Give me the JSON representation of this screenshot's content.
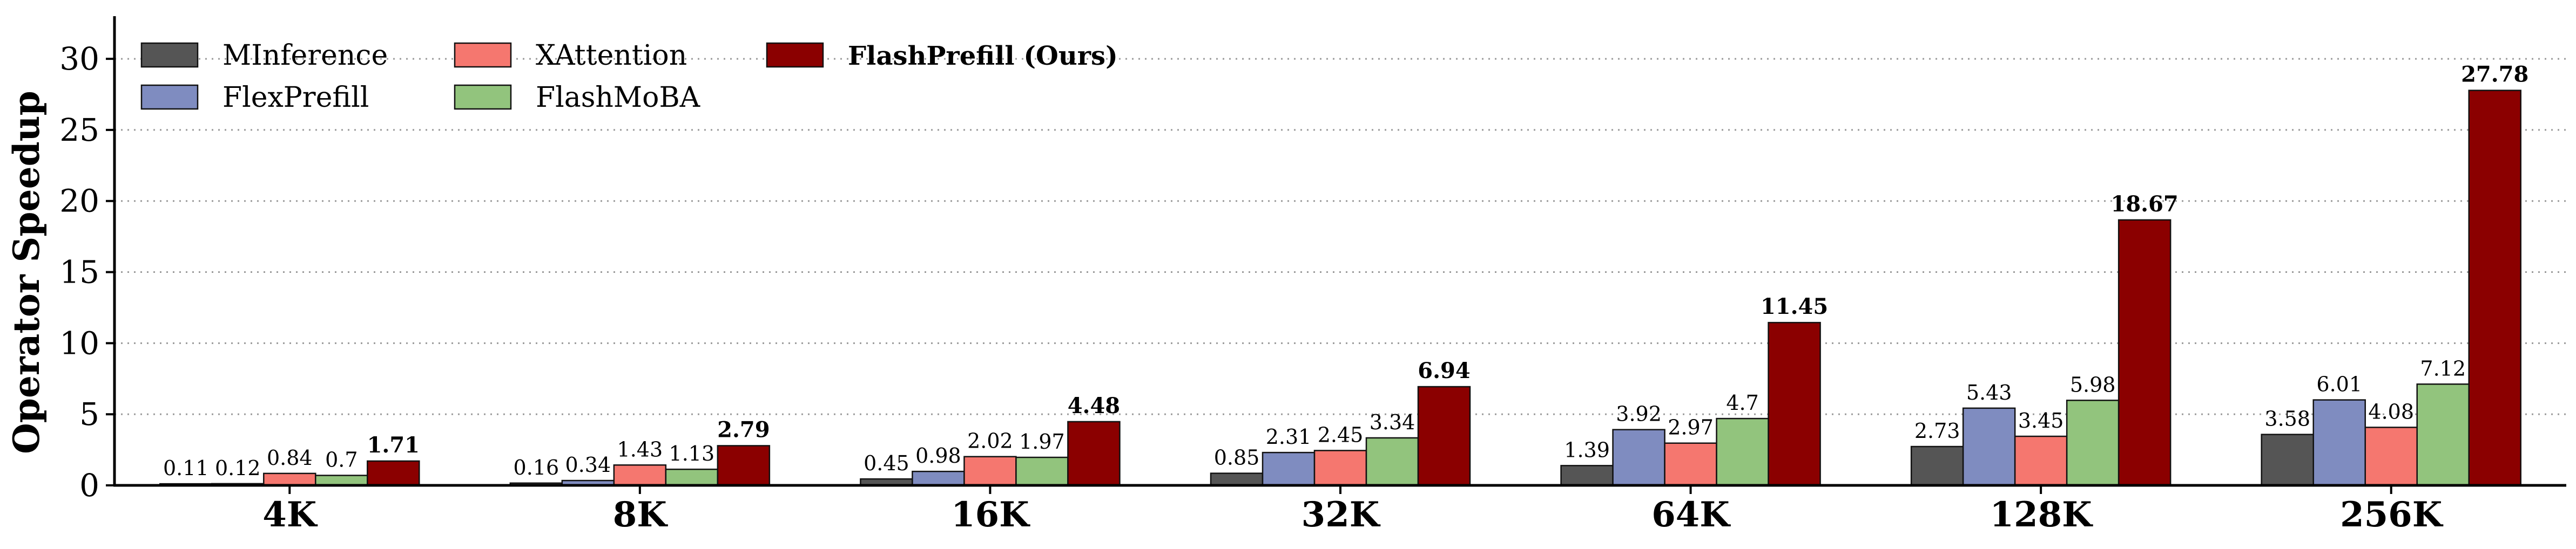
{
  "chart_data": {
    "type": "bar",
    "title": "",
    "xlabel": "",
    "ylabel": "Operator Speedup",
    "ylim": [
      0,
      33
    ],
    "yticks": [
      0,
      5,
      10,
      15,
      20,
      25,
      30
    ],
    "grid": true,
    "legend_position": "top-left",
    "categories": [
      "4K",
      "8K",
      "16K",
      "32K",
      "64K",
      "128K",
      "256K"
    ],
    "series": [
      {
        "name": "MInference",
        "color": "#555555",
        "values": [
          0.11,
          0.16,
          0.45,
          0.85,
          1.39,
          2.73,
          3.58
        ]
      },
      {
        "name": "FlexPrefill",
        "color": "#7f8cc0",
        "values": [
          0.12,
          0.34,
          0.98,
          2.31,
          3.92,
          5.43,
          6.01
        ]
      },
      {
        "name": "XAttention",
        "color": "#f5776f",
        "values": [
          0.84,
          1.43,
          2.02,
          2.45,
          2.97,
          3.45,
          4.08
        ]
      },
      {
        "name": "FlashMoBA",
        "color": "#92c47d",
        "values": [
          0.7,
          1.13,
          1.97,
          3.34,
          4.7,
          5.98,
          7.12
        ]
      },
      {
        "name": "FlashPrefill (Ours)",
        "color": "#8b0000",
        "values": [
          1.71,
          2.79,
          4.48,
          6.94,
          11.45,
          18.67,
          27.78
        ],
        "bold": true
      }
    ]
  }
}
